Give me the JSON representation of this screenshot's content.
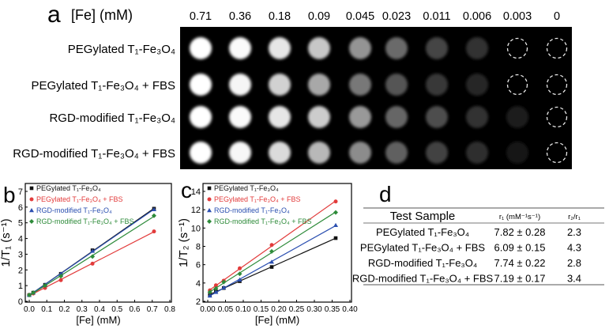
{
  "panel_a": {
    "letter": "a",
    "conc_label": "[Fe] (mM)",
    "concentrations": [
      "0.71",
      "0.36",
      "0.18",
      "0.09",
      "0.045",
      "0.023",
      "0.011",
      "0.006",
      "0.003",
      "0"
    ],
    "rows": [
      {
        "label": "PEGylated T₁-Fe₃O₄",
        "intensity": [
          1.0,
          0.98,
          0.9,
          0.78,
          0.58,
          0.42,
          0.27,
          0.2,
          null,
          null
        ]
      },
      {
        "label": "PEGylated T₁-Fe₃O₄ + FBS",
        "intensity": [
          1.0,
          0.96,
          0.82,
          0.66,
          0.47,
          0.33,
          0.22,
          0.15,
          null,
          null
        ]
      },
      {
        "label": "RGD-modified T₁-Fe₃O₄",
        "intensity": [
          1.0,
          0.98,
          0.9,
          0.8,
          0.6,
          0.4,
          0.3,
          0.2,
          0.1,
          null
        ]
      },
      {
        "label": "RGD-modified T₁-Fe₃O₄ + FBS",
        "intensity": [
          1.0,
          0.97,
          0.86,
          0.72,
          0.55,
          0.38,
          0.26,
          0.18,
          0.09,
          null
        ]
      }
    ]
  },
  "chart_data": [
    {
      "panel": "b",
      "type": "line",
      "xlabel": "[Fe] (mM)",
      "ylabel": "1/T₁ (s⁻¹)",
      "xlim": [
        0,
        0.8
      ],
      "ylim": [
        0,
        7
      ],
      "xticks": [
        "0.0",
        "0.1",
        "0.2",
        "0.3",
        "0.4",
        "0.5",
        "0.6",
        "0.7",
        "0.8"
      ],
      "yticks": [
        "0",
        "1",
        "2",
        "3",
        "4",
        "5",
        "6",
        "7"
      ],
      "legend": "top-left",
      "x": [
        0,
        0.023,
        0.09,
        0.18,
        0.36,
        0.71
      ],
      "series": [
        {
          "name": "PEGylated T₁-Fe₃O₄",
          "color": "#111111",
          "marker": "square",
          "values": [
            0.4,
            0.55,
            1.05,
            1.75,
            3.25,
            5.9
          ]
        },
        {
          "name": "PEGylated T₁-Fe₃O₄ + FBS",
          "color": "#e23b3b",
          "marker": "circle",
          "values": [
            0.4,
            0.5,
            0.85,
            1.35,
            2.4,
            4.45
          ]
        },
        {
          "name": "RGD-modified T₁-Fe₃O₄",
          "color": "#2b4fb0",
          "marker": "triangle",
          "values": [
            0.4,
            0.55,
            1.05,
            1.75,
            3.2,
            5.85
          ]
        },
        {
          "name": "RGD-modified T₁-Fe₃O₄ + FBS",
          "color": "#2e8b3a",
          "marker": "diamond",
          "values": [
            0.4,
            0.55,
            1.0,
            1.6,
            2.85,
            5.45
          ]
        }
      ]
    },
    {
      "panel": "c",
      "type": "line",
      "xlabel": "[Fe] (mM)",
      "ylabel": "1/T₂ (s⁻¹)",
      "xlim": [
        0,
        0.4
      ],
      "ylim": [
        2,
        14
      ],
      "xticks": [
        "0.00",
        "0.05",
        "0.10",
        "0.15",
        "0.20",
        "0.25",
        "0.30",
        "0.35",
        "0.40"
      ],
      "yticks": [
        "2",
        "4",
        "6",
        "8",
        "10",
        "12",
        "14"
      ],
      "legend": "top-left",
      "x": [
        0.006,
        0.023,
        0.045,
        0.09,
        0.18,
        0.36
      ],
      "series": [
        {
          "name": "PEGylated T₁-Fe₃O₄",
          "color": "#111111",
          "marker": "square",
          "values": [
            2.7,
            3.1,
            3.45,
            4.2,
            5.75,
            8.9
          ]
        },
        {
          "name": "PEGylated T₁-Fe₃O₄ + FBS",
          "color": "#e23b3b",
          "marker": "circle",
          "values": [
            3.2,
            3.75,
            4.25,
            5.6,
            8.15,
            12.9
          ]
        },
        {
          "name": "RGD-modified T₁-Fe₃O₄",
          "color": "#2b4fb0",
          "marker": "triangle",
          "values": [
            2.6,
            3.0,
            3.5,
            4.35,
            6.3,
            10.3
          ]
        },
        {
          "name": "RGD-modified T₁-Fe₃O₄ + FBS",
          "color": "#2e8b3a",
          "marker": "diamond",
          "values": [
            3.0,
            3.4,
            4.1,
            5.0,
            7.45,
            11.7
          ]
        }
      ]
    }
  ],
  "panel_d": {
    "letter": "d",
    "headers": [
      "Test Sample",
      "r₁ (mM⁻¹s⁻¹)",
      "r₂/r₁"
    ],
    "rows": [
      [
        "PEGylated T₁-Fe₃O₄",
        "7.82 ± 0.28",
        "2.3"
      ],
      [
        "PEGylated T₁-Fe₃O₄ + FBS",
        "6.09 ± 0.15",
        "4.3"
      ],
      [
        "RGD-modified T₁-Fe₃O₄",
        "7.74 ± 0.22",
        "2.8"
      ],
      [
        "RGD-modified T₁-Fe₃O₄ + FBS",
        "7.19 ± 0.17",
        "3.4"
      ]
    ]
  }
}
